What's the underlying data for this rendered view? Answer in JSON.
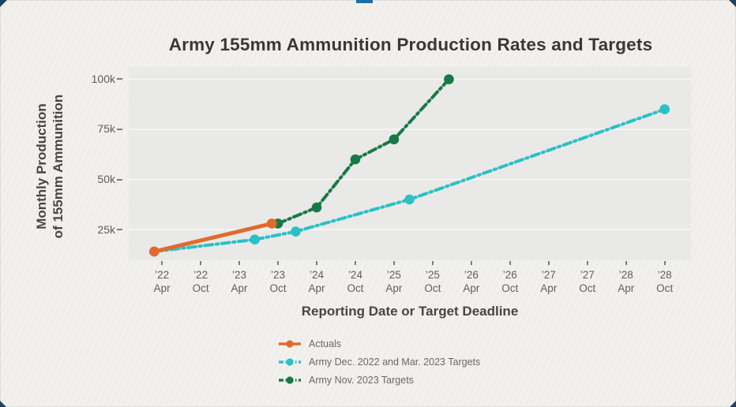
{
  "page": {
    "background_color": "#f3f1ee",
    "corner_accent_color": "#24415c",
    "top_tab_color": "#1f6da6"
  },
  "chart_data": {
    "type": "line",
    "title": "Army 155mm Ammunition Production Rates and Targets",
    "xlabel": "Reporting Date or Target Deadline",
    "ylabel": "Monthly Production of 155mm Ammunition",
    "ylabel_line1": "Monthly Production",
    "ylabel_line2": "of 155mm Ammunition",
    "y_unit": "thousand rounds per month",
    "grid": true,
    "legend_position": "bottom-left",
    "plot_background": "#e9e9e7",
    "gridline_color": "#f7f7f5",
    "xlim_years": [
      2021.82,
      2029.09
    ],
    "ylim_k": [
      9.65,
      106.1
    ],
    "y_ticks": [
      {
        "value_k": 25,
        "label": "25k"
      },
      {
        "value_k": 50,
        "label": "50k"
      },
      {
        "value_k": 75,
        "label": "75k"
      },
      {
        "value_k": 100,
        "label": "100k"
      }
    ],
    "x_ticks": [
      {
        "year": 2022.25,
        "label_top": "’22",
        "label_bottom": "Apr"
      },
      {
        "year": 2022.75,
        "label_top": "’22",
        "label_bottom": "Oct"
      },
      {
        "year": 2023.25,
        "label_top": "’23",
        "label_bottom": "Apr"
      },
      {
        "year": 2023.75,
        "label_top": "’23",
        "label_bottom": "Oct"
      },
      {
        "year": 2024.25,
        "label_top": "’24",
        "label_bottom": "Apr"
      },
      {
        "year": 2024.75,
        "label_top": "’24",
        "label_bottom": "Oct"
      },
      {
        "year": 2025.25,
        "label_top": "’25",
        "label_bottom": "Apr"
      },
      {
        "year": 2025.75,
        "label_top": "’25",
        "label_bottom": "Oct"
      },
      {
        "year": 2026.25,
        "label_top": "’26",
        "label_bottom": "Apr"
      },
      {
        "year": 2026.75,
        "label_top": "’26",
        "label_bottom": "Oct"
      },
      {
        "year": 2027.25,
        "label_top": "’27",
        "label_bottom": "Apr"
      },
      {
        "year": 2027.75,
        "label_top": "’27",
        "label_bottom": "Oct"
      },
      {
        "year": 2028.25,
        "label_top": "’28",
        "label_bottom": "Apr"
      },
      {
        "year": 2028.75,
        "label_top": "’28",
        "label_bottom": "Oct"
      }
    ],
    "series": [
      {
        "name": "Actuals",
        "color": "#E06A2E",
        "line_style": "solid",
        "points": [
          {
            "date": "Feb 2022",
            "x_year": 2022.15,
            "value_k": 14
          },
          {
            "date": "Sep 2023",
            "x_year": 2023.67,
            "value_k": 28
          }
        ]
      },
      {
        "name": "Army Dec. 2022 and Mar. 2023 Targets",
        "color": "#2BC0C6",
        "line_style": "dash-dot",
        "points": [
          {
            "date": "Feb 2022",
            "x_year": 2022.15,
            "value_k": 14
          },
          {
            "date": "Jun 2023",
            "x_year": 2023.45,
            "value_k": 20
          },
          {
            "date": "Dec 2023",
            "x_year": 2023.98,
            "value_k": 24
          },
          {
            "date": "Jun 2025",
            "x_year": 2025.45,
            "value_k": 40
          },
          {
            "date": "Oct 2028",
            "x_year": 2028.75,
            "value_k": 85
          }
        ]
      },
      {
        "name": "Army Nov. 2023 Targets",
        "color": "#177A46",
        "line_style": "dash-dot",
        "points": [
          {
            "date": "Oct 2023",
            "x_year": 2023.75,
            "value_k": 28
          },
          {
            "date": "Apr 2024",
            "x_year": 2024.25,
            "value_k": 36
          },
          {
            "date": "Oct 2024",
            "x_year": 2024.75,
            "value_k": 60
          },
          {
            "date": "Apr 2025",
            "x_year": 2025.25,
            "value_k": 70
          },
          {
            "date": "Dec 2025",
            "x_year": 2025.96,
            "value_k": 100
          }
        ]
      }
    ]
  }
}
